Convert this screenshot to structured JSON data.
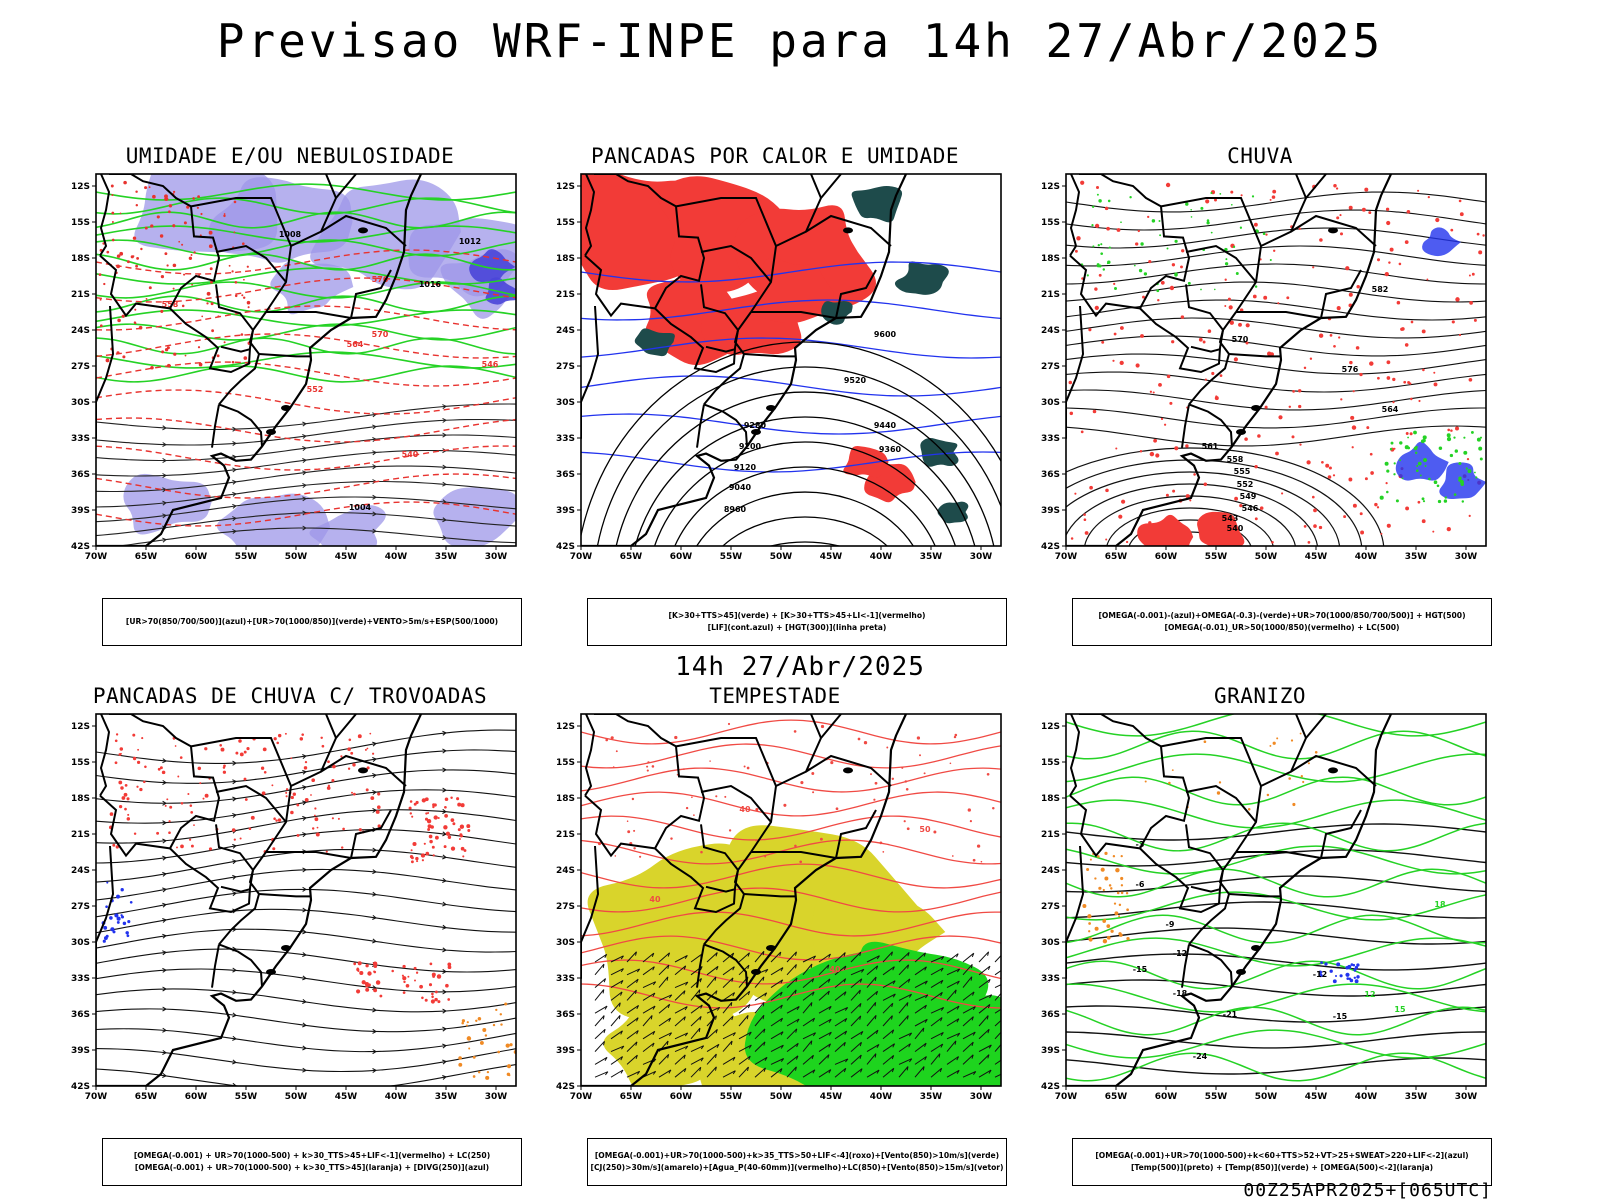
{
  "header": {
    "title": "Previsao WRF-INPE  para 14h 27/Abr/2025",
    "mid_title": "14h 27/Abr/2025",
    "run_stamp": "00Z25APR2025+[065UTC]"
  },
  "axes": {
    "yticks": [
      "12S",
      "15S",
      "18S",
      "21S",
      "24S",
      "27S",
      "30S",
      "33S",
      "36S",
      "39S",
      "42S"
    ],
    "xticks": [
      "70W",
      "65W",
      "60W",
      "55W",
      "50W",
      "45W",
      "40W",
      "35W",
      "30W"
    ],
    "lat_range": [
      -11,
      -42
    ],
    "lon_range": [
      -70,
      -28
    ]
  },
  "chart_data": [
    {
      "type": "map",
      "title": "UMIDADE E/OU NEBULOSIDADE",
      "legend": [
        "[UR>70(850/700/500)](azul)+[UR>70(1000/850)](verde)+VENTO>5m/s+ESP(500/1000)"
      ],
      "contour_labels": [
        "1008",
        "1012",
        "1016",
        "576",
        "570",
        "564",
        "558",
        "552",
        "546",
        "540",
        "1004"
      ],
      "colors": {
        "blue": "#9d97e8",
        "green": "#25d225",
        "red": "#e8332f"
      }
    },
    {
      "type": "map",
      "title": "PANCADAS POR CALOR E UMIDADE",
      "legend": [
        "[K>30+TTS>45](verde) + [K>30+TTS>45+LI<-1](vermelho)",
        "[LIF](cont.azul) + [HGT(300)](linha preta)"
      ],
      "contour_labels": [
        "9600",
        "9520",
        "9440",
        "9360",
        "9280",
        "9200",
        "9120",
        "9040",
        "8960"
      ],
      "colors": {
        "red": "#f23b37",
        "dark_green": "#1e4b4b",
        "blue": "#2233ee"
      }
    },
    {
      "type": "map",
      "title": "CHUVA",
      "legend": [
        "[OMEGA(-0.001)-(azul)+OMEGA(-0.3)-(verde)+UR>70(1000/850/700/500)] + HGT(500)",
        "[OMEGA(-0.01)_UR>50(1000/850)(vermelho) + LC(500)"
      ],
      "contour_labels": [
        "582",
        "576",
        "570",
        "564",
        "561",
        "558",
        "555",
        "552",
        "549",
        "546",
        "543",
        "540"
      ],
      "colors": {
        "red": "#f23b37",
        "blue": "#2233ee",
        "green": "#25d225"
      }
    },
    {
      "type": "map",
      "title": "PANCADAS DE CHUVA C/ TROVOADAS",
      "legend": [
        "[OMEGA(-0.001) + UR>70(1000-500) + k>30_TTS>45+LIF<-1](vermelho) + LC(250)",
        "[OMEGA(-0.001) + UR>70(1000-500) + k>30_TTS>45](laranja) + [DIVG(250)](azul)"
      ],
      "contour_labels": [],
      "colors": {
        "red": "#f23b37",
        "orange": "#f08a24",
        "blue": "#2233ee"
      }
    },
    {
      "type": "map",
      "title": "TEMPESTADE",
      "legend": [
        "[OMEGA(-0.001)+UR>70(1000-500)+k>35_TTS>50+LIF<-4](roxo)+[Vento(850)>10m/s](verde)",
        "[CJ(250)>30m/s](amarelo)+[Agua_P(40-60mm)](vermelho)+LC(850)+[Vento(850)>15m/s](vetor)"
      ],
      "contour_labels": [
        "40",
        "40",
        "40",
        "50"
      ],
      "colors": {
        "yellow": "#d9d42b",
        "green": "#1ed41e",
        "red": "#f04a44"
      }
    },
    {
      "type": "map",
      "title": "GRANIZO",
      "legend": [
        "[OMEGA(-0.001)+UR>70(1000-500)+k<60+TTS>52+VT>25+SWEAT>220+LIF<-2](azul)",
        "[Temp(500)](preto) + [Temp(850)](verde) + [OMEGA(500)<-2](laranja)"
      ],
      "contour_labels": [
        "-3",
        "-6",
        "-9",
        "-12",
        "-12",
        "-15",
        "-15",
        "-18",
        "-21",
        "-24",
        "12",
        "15",
        "18"
      ],
      "colors": {
        "green": "#25d225",
        "orange": "#f08a24",
        "blue": "#2233ee"
      }
    }
  ]
}
